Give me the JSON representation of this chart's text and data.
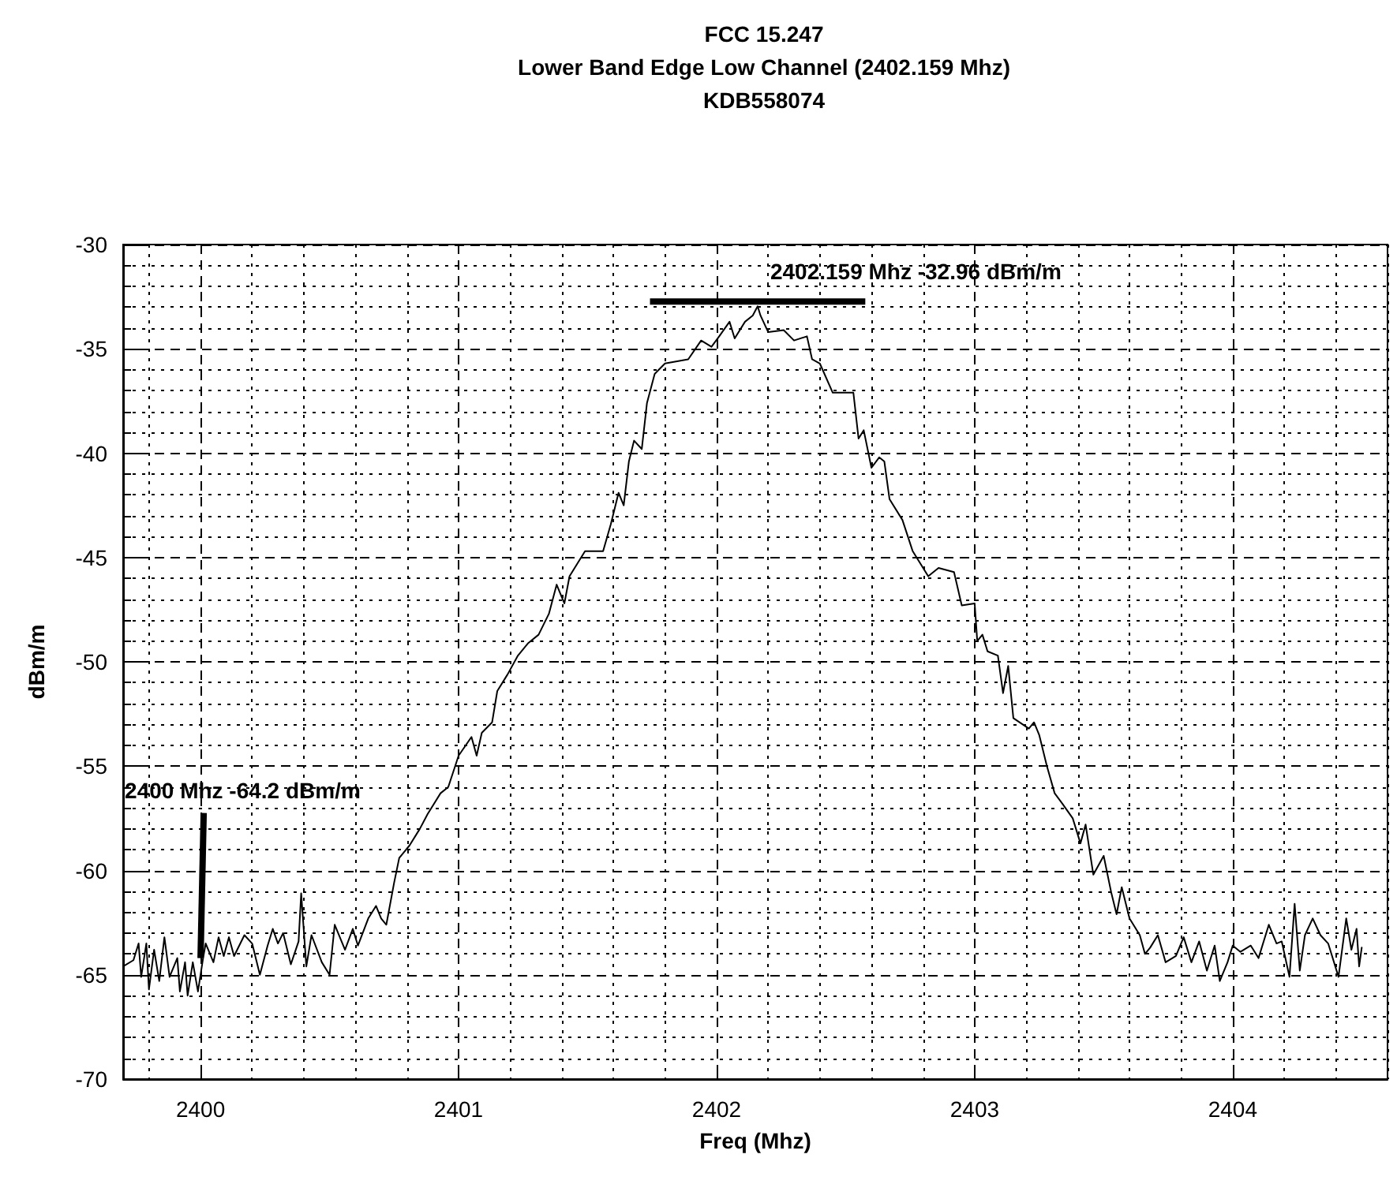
{
  "chart_data": {
    "type": "line",
    "title": "FCC 15.247\nLower Band Edge Low Channel (2402.159 Mhz)\nKDB558074",
    "xlabel": "Freq (Mhz)",
    "ylabel": "dBm/m",
    "xlim": [
      2399.7,
      2404.6
    ],
    "xticks": [
      2400,
      2401,
      2402,
      2403,
      2404
    ],
    "ylim": [
      -70,
      -30
    ],
    "yticks": [
      -70,
      -65,
      -60,
      -55,
      -50,
      -45,
      -40,
      -35,
      -30
    ],
    "grid": true,
    "marker": "none",
    "line_style": "solid",
    "annotations": [
      {
        "text": "2400 Mhz  -64.2 dBm/m",
        "x": 2400,
        "y": -64.2
      },
      {
        "text": "2402.159 Mhz  -32.96 dBm/m",
        "x": 2402.159,
        "y": -32.96
      }
    ],
    "series": [
      {
        "color": "#000000",
        "x": [
          2399.7,
          2399.74,
          2399.76,
          2399.77,
          2399.79,
          2399.8,
          2399.82,
          2399.84,
          2399.86,
          2399.88,
          2399.91,
          2399.92,
          2399.94,
          2399.95,
          2399.97,
          2399.99,
          2400.01,
          2400.02,
          2400.05,
          2400.07,
          2400.09,
          2400.11,
          2400.13,
          2400.17,
          2400.2,
          2400.23,
          2400.26,
          2400.28,
          2400.3,
          2400.32,
          2400.35,
          2400.38,
          2400.39,
          2400.41,
          2400.43,
          2400.47,
          2400.5,
          2400.52,
          2400.56,
          2400.59,
          2400.61,
          2400.65,
          2400.68,
          2400.7,
          2400.72,
          2400.75,
          2400.77,
          2400.81,
          2400.85,
          2400.88,
          2400.93,
          2400.96,
          2401.0,
          2401.05,
          2401.07,
          2401.09,
          2401.13,
          2401.15,
          2401.19,
          2401.23,
          2401.27,
          2401.31,
          2401.35,
          2401.38,
          2401.41,
          2401.43,
          2401.49,
          2401.56,
          2401.59,
          2401.62,
          2401.64,
          2401.66,
          2401.68,
          2401.71,
          2401.73,
          2401.76,
          2401.8,
          2401.89,
          2401.94,
          2401.98,
          2402.01,
          2402.05,
          2402.07,
          2402.11,
          2402.14,
          2402.159,
          2402.17,
          2402.2,
          2402.26,
          2402.3,
          2402.35,
          2402.37,
          2402.4,
          2402.45,
          2402.5,
          2402.53,
          2402.55,
          2402.57,
          2402.6,
          2402.63,
          2402.65,
          2402.67,
          2402.72,
          2402.76,
          2402.82,
          2402.86,
          2402.92,
          2402.95,
          2403.0,
          2403.01,
          2403.03,
          2403.05,
          2403.09,
          2403.11,
          2403.13,
          2403.15,
          2403.21,
          2403.23,
          2403.25,
          2403.28,
          2403.31,
          2403.34,
          2403.38,
          2403.41,
          2403.43,
          2403.46,
          2403.5,
          2403.53,
          2403.55,
          2403.57,
          2403.6,
          2403.64,
          2403.66,
          2403.68,
          2403.71,
          2403.74,
          2403.78,
          2403.81,
          2403.84,
          2403.87,
          2403.9,
          2403.93,
          2403.95,
          2403.98,
          2404.0,
          2404.03,
          2404.07,
          2404.1,
          2404.14,
          2404.17,
          2404.19,
          2404.22,
          2404.24,
          2404.26,
          2404.28,
          2404.31,
          2404.34,
          2404.37,
          2404.41,
          2404.44,
          2404.46,
          2404.48,
          2404.49,
          2404.5
        ],
        "values": [
          -64.6,
          -64.3,
          -63.5,
          -65.1,
          -63.5,
          -65.7,
          -63.8,
          -65.3,
          -63.2,
          -65.1,
          -64.2,
          -65.8,
          -64.4,
          -66.0,
          -64.4,
          -65.8,
          -64.2,
          -63.5,
          -64.4,
          -63.2,
          -64.1,
          -63.2,
          -64.1,
          -63.1,
          -63.5,
          -65.0,
          -63.6,
          -62.8,
          -63.5,
          -63.0,
          -64.5,
          -63.4,
          -61.1,
          -64.6,
          -63.1,
          -64.4,
          -65.0,
          -62.6,
          -63.8,
          -62.8,
          -63.6,
          -62.3,
          -61.7,
          -62.3,
          -62.6,
          -60.6,
          -59.4,
          -58.8,
          -58.0,
          -57.3,
          -56.3,
          -56.0,
          -54.5,
          -53.6,
          -54.5,
          -53.4,
          -52.9,
          -51.4,
          -50.6,
          -49.7,
          -49.1,
          -48.7,
          -47.7,
          -46.3,
          -47.2,
          -45.9,
          -44.7,
          -44.7,
          -43.4,
          -41.9,
          -42.5,
          -40.4,
          -39.4,
          -39.8,
          -37.6,
          -36.2,
          -35.7,
          -35.5,
          -34.6,
          -34.9,
          -34.4,
          -33.7,
          -34.5,
          -33.7,
          -33.4,
          -32.96,
          -33.4,
          -34.2,
          -34.1,
          -34.6,
          -34.4,
          -35.5,
          -35.7,
          -37.1,
          -37.1,
          -37.1,
          -39.3,
          -38.9,
          -40.7,
          -40.2,
          -40.4,
          -42.2,
          -43.2,
          -44.7,
          -45.9,
          -45.5,
          -45.7,
          -47.3,
          -47.2,
          -49.0,
          -48.7,
          -49.5,
          -49.7,
          -51.5,
          -50.2,
          -52.7,
          -53.2,
          -52.9,
          -53.5,
          -55.0,
          -56.3,
          -56.8,
          -57.5,
          -58.7,
          -57.8,
          -60.2,
          -59.3,
          -61.1,
          -62.1,
          -60.8,
          -62.3,
          -63.1,
          -64.0,
          -63.7,
          -63.1,
          -64.4,
          -64.1,
          -63.2,
          -64.4,
          -63.4,
          -64.8,
          -63.6,
          -65.3,
          -64.4,
          -63.6,
          -63.9,
          -63.6,
          -64.2,
          -62.6,
          -63.5,
          -63.4,
          -65.1,
          -61.6,
          -64.8,
          -63.1,
          -62.3,
          -63.1,
          -63.5,
          -65.1,
          -62.3,
          -63.8,
          -62.8,
          -64.6,
          -63.7
        ]
      }
    ]
  }
}
